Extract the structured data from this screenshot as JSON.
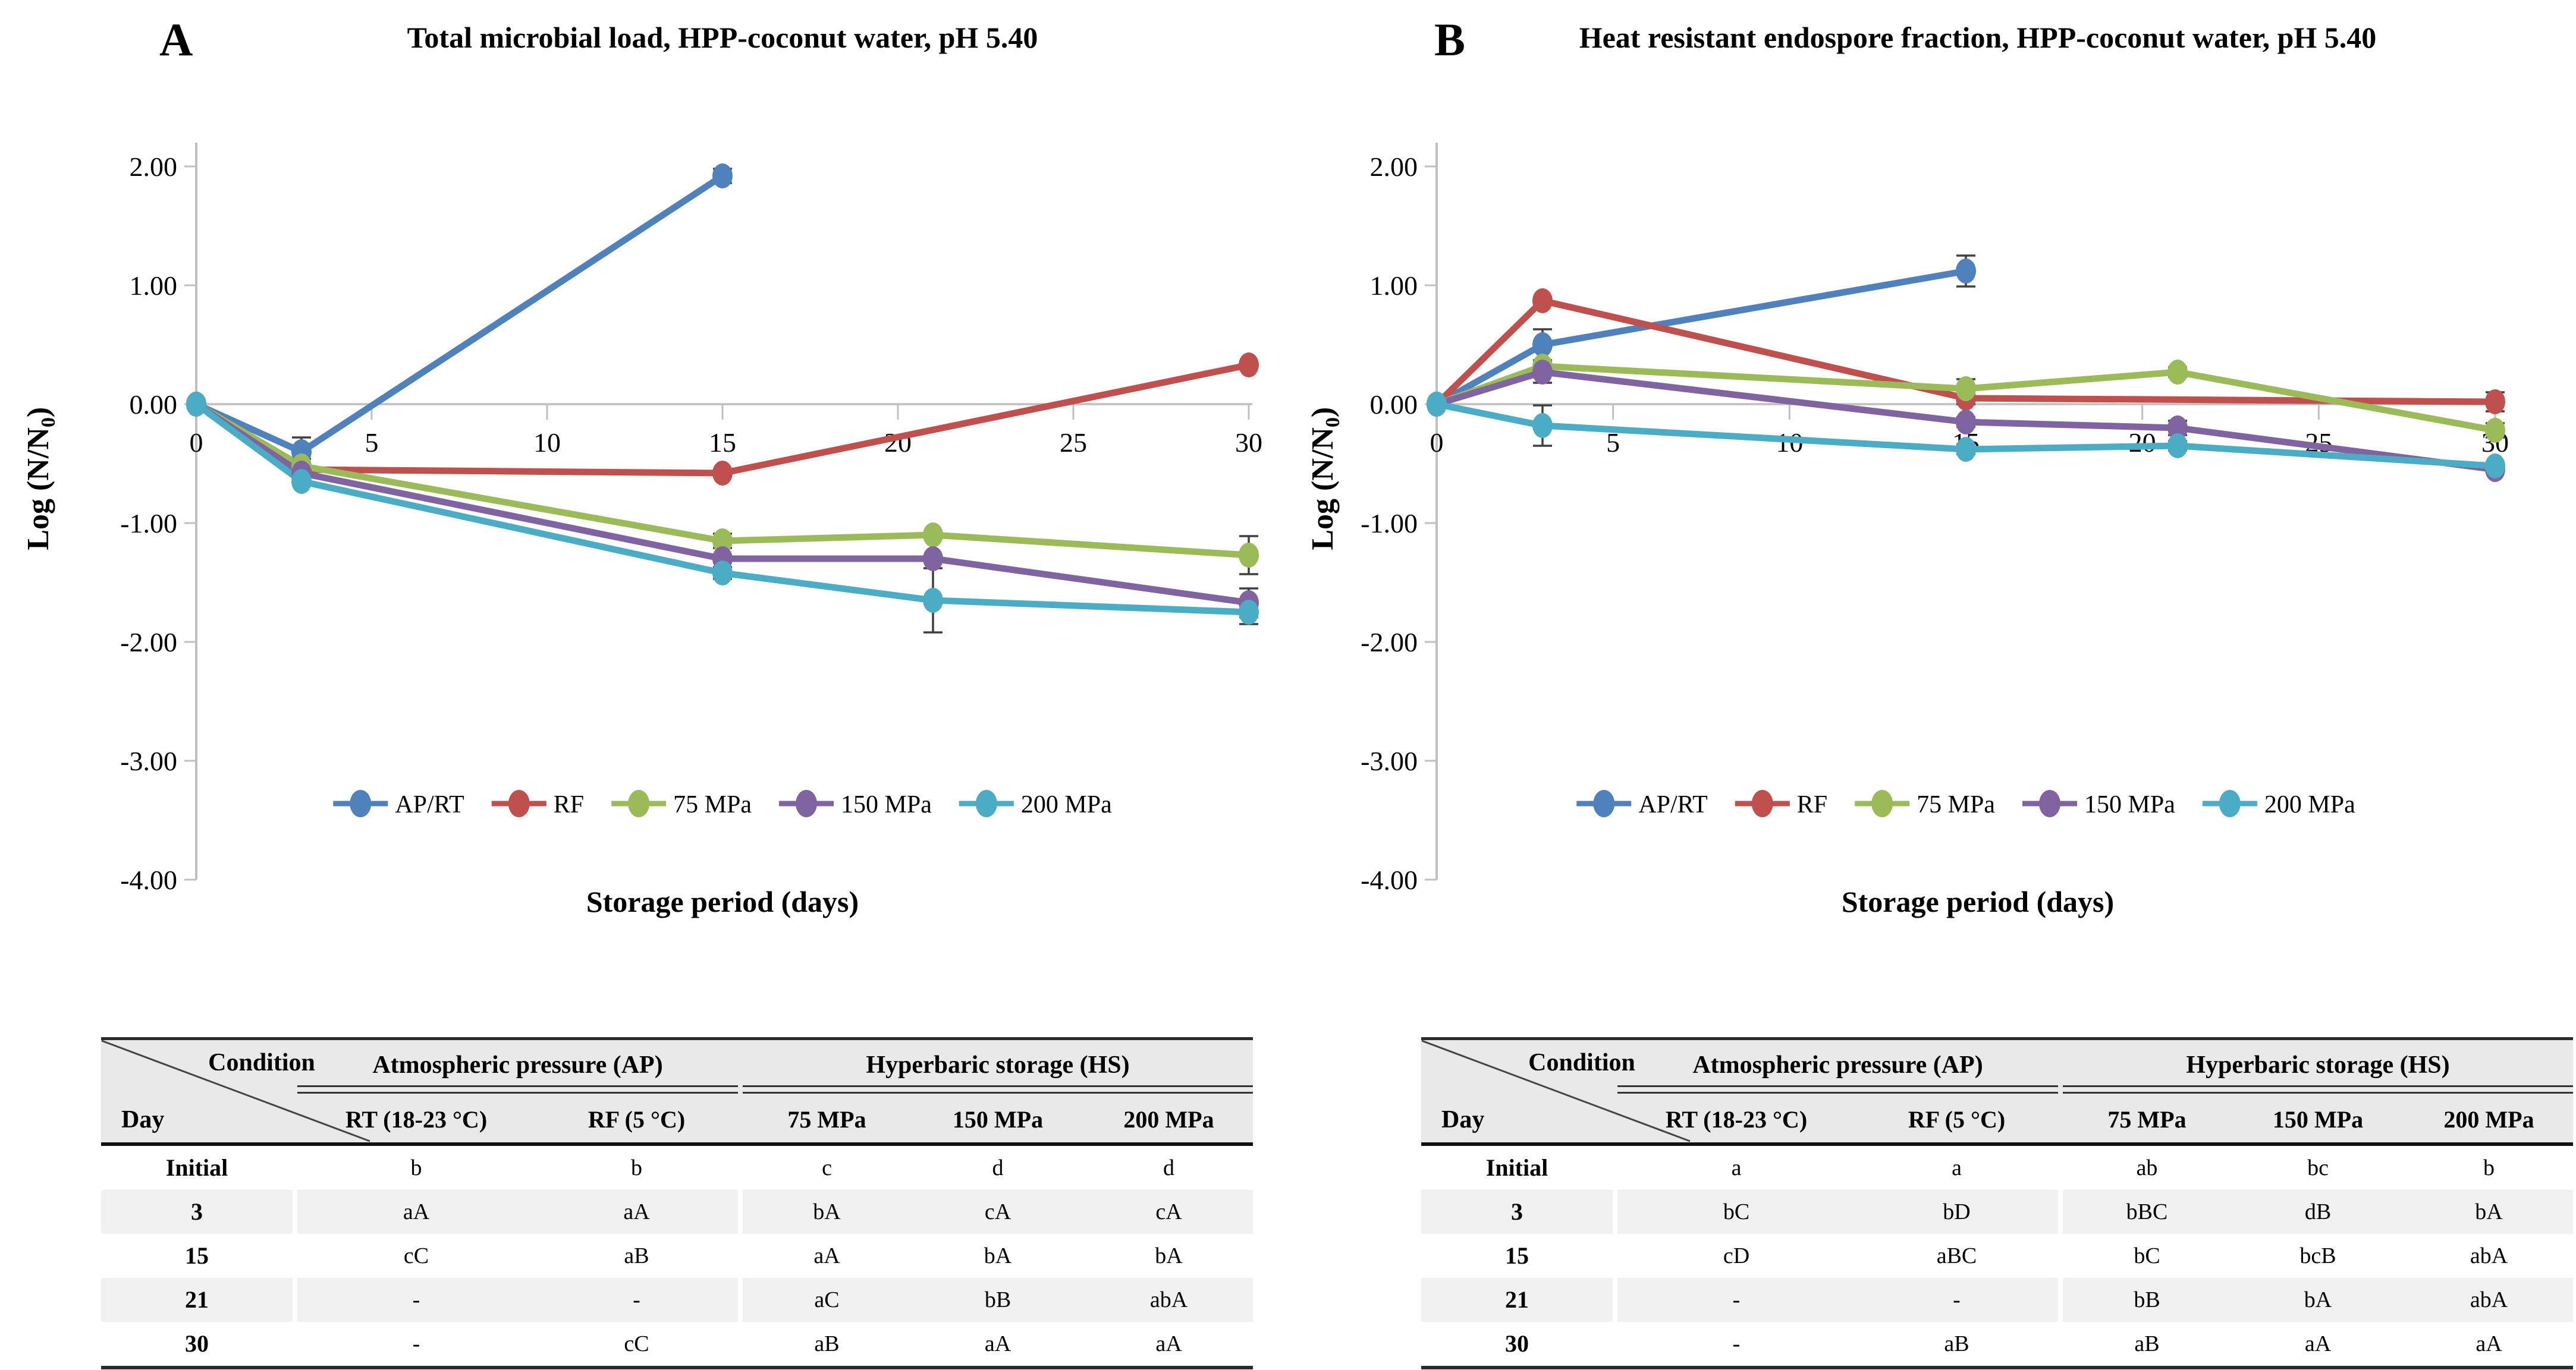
{
  "panels": [
    {
      "label": "A"
    },
    {
      "label": "B"
    }
  ],
  "axes": {
    "ylabel_pre": "Log (N/N",
    "ylabel_sub": "0",
    "ylabel_post": ")",
    "xlabel": "Storage period (days)",
    "yticks": [
      "2.00",
      "1.00",
      "0.00",
      "-1.00",
      "-2.00",
      "-3.00",
      "-4.00"
    ],
    "ytick_values": [
      2,
      1,
      0,
      -1,
      -2,
      -3,
      -4
    ],
    "xticks": [
      0,
      5,
      10,
      15,
      20,
      25,
      30
    ],
    "xlim": [
      0,
      30
    ],
    "ylim": [
      -4,
      2
    ]
  },
  "colors": {
    "axis": "#BFBFBF",
    "error_bar": "#3F3F3F",
    "blue": "#4F81BD",
    "red": "#C0504D",
    "green": "#9BBB59",
    "purple": "#8064A2",
    "cyan": "#4BACC6",
    "header_bg": "#E9E9E9",
    "row_shade": "#F1F1F1",
    "border_dark": "#2B2B2B"
  },
  "chart_data": [
    {
      "type": "line",
      "panel": "A",
      "title": "Total microbial load, HPP-coconut water, pH 5.40",
      "xlabel": "Storage period (days)",
      "ylabel": "Log (N/N0)",
      "xlim": [
        0,
        30
      ],
      "ylim": [
        -4,
        2
      ],
      "legend_position": "bottom",
      "grid": false,
      "series": [
        {
          "name": "AP/RT",
          "color": "#4F81BD",
          "x": [
            0,
            3,
            15
          ],
          "y": [
            0,
            -0.4,
            1.92
          ],
          "err": [
            0,
            0.12,
            0.06
          ]
        },
        {
          "name": "RF",
          "color": "#C0504D",
          "x": [
            0,
            3,
            15,
            30
          ],
          "y": [
            0,
            -0.55,
            -0.58,
            0.33
          ],
          "err": [
            0,
            0,
            0,
            0
          ]
        },
        {
          "name": "75 MPa",
          "color": "#9BBB59",
          "x": [
            0,
            3,
            15,
            21,
            30
          ],
          "y": [
            0,
            -0.52,
            -1.15,
            -1.1,
            -1.27
          ],
          "err": [
            0,
            0.06,
            0.06,
            0,
            0.16
          ]
        },
        {
          "name": "150 MPa",
          "color": "#8064A2",
          "x": [
            0,
            3,
            15,
            21,
            30
          ],
          "y": [
            0,
            -0.58,
            -1.3,
            -1.3,
            -1.67
          ],
          "err": [
            0,
            0.05,
            0,
            0,
            0.12
          ]
        },
        {
          "name": "200 MPa",
          "color": "#4BACC6",
          "x": [
            0,
            3,
            15,
            21,
            30
          ],
          "y": [
            0,
            -0.65,
            -1.42,
            -1.65,
            -1.75
          ],
          "err": [
            0,
            0,
            0.05,
            0.27,
            0.1
          ]
        }
      ]
    },
    {
      "type": "line",
      "panel": "B",
      "title": "Heat resistant endospore fraction, HPP-coconut water, pH 5.40",
      "xlabel": "Storage period (days)",
      "ylabel": "Log (N/N0)",
      "xlim": [
        0,
        30
      ],
      "ylim": [
        -4,
        2
      ],
      "legend_position": "bottom",
      "grid": false,
      "series": [
        {
          "name": "AP/RT",
          "color": "#4F81BD",
          "x": [
            0,
            3,
            15
          ],
          "y": [
            0,
            0.5,
            1.12
          ],
          "err": [
            0,
            0.13,
            0.13
          ]
        },
        {
          "name": "RF",
          "color": "#C0504D",
          "x": [
            0,
            3,
            15,
            30
          ],
          "y": [
            0,
            0.87,
            0.05,
            0.02
          ],
          "err": [
            0,
            0,
            0.05,
            0.08
          ]
        },
        {
          "name": "75 MPa",
          "color": "#9BBB59",
          "x": [
            0,
            3,
            15,
            21,
            30
          ],
          "y": [
            0,
            0.32,
            0.13,
            0.27,
            -0.22
          ],
          "err": [
            0,
            0.04,
            0.08,
            0.04,
            0.06
          ]
        },
        {
          "name": "150 MPa",
          "color": "#8064A2",
          "x": [
            0,
            3,
            15,
            21,
            30
          ],
          "y": [
            0,
            0.27,
            -0.15,
            -0.2,
            -0.55
          ],
          "err": [
            0,
            0.09,
            0.04,
            0.06,
            0
          ]
        },
        {
          "name": "200 MPa",
          "color": "#4BACC6",
          "x": [
            0,
            3,
            15,
            21,
            30
          ],
          "y": [
            0,
            -0.18,
            -0.38,
            -0.35,
            -0.52
          ],
          "err": [
            0,
            0.17,
            0.04,
            0.04,
            0
          ]
        }
      ]
    }
  ],
  "tables": [
    {
      "panel": "A",
      "corner_top": "Condition",
      "corner_bottom": "Day",
      "group_headers": [
        "Atmospheric pressure (AP)",
        "Hyperbaric storage (HS)"
      ],
      "col_headers": [
        "RT (18-23 °C)",
        "RF (5 °C)",
        "75 MPa",
        "150 MPa",
        "200 MPa"
      ],
      "rows": [
        {
          "day": "Initial",
          "values": [
            "b",
            "b",
            "c",
            "d",
            "d"
          ]
        },
        {
          "day": "3",
          "values": [
            "aA",
            "aA",
            "bA",
            "cA",
            "cA"
          ]
        },
        {
          "day": "15",
          "values": [
            "cC",
            "aB",
            "aA",
            "bA",
            "bA"
          ]
        },
        {
          "day": "21",
          "values": [
            "-",
            "-",
            "aC",
            "bB",
            "abA"
          ]
        },
        {
          "day": "30",
          "values": [
            "-",
            "cC",
            "aB",
            "aA",
            "aA"
          ]
        }
      ]
    },
    {
      "panel": "B",
      "corner_top": "Condition",
      "corner_bottom": "Day",
      "group_headers": [
        "Atmospheric pressure (AP)",
        "Hyperbaric storage (HS)"
      ],
      "col_headers": [
        "RT (18-23 °C)",
        "RF (5 °C)",
        "75 MPa",
        "150 MPa",
        "200 MPa"
      ],
      "rows": [
        {
          "day": "Initial",
          "values": [
            "a",
            "a",
            "ab",
            "bc",
            "b"
          ]
        },
        {
          "day": "3",
          "values": [
            "bC",
            "bD",
            "bBC",
            "dB",
            "bA"
          ]
        },
        {
          "day": "15",
          "values": [
            "cD",
            "aBC",
            "bC",
            "bcB",
            "abA"
          ]
        },
        {
          "day": "21",
          "values": [
            "-",
            "-",
            "bB",
            "bA",
            "abA"
          ]
        },
        {
          "day": "30",
          "values": [
            "-",
            "aB",
            "aB",
            "aA",
            "aA"
          ]
        }
      ]
    }
  ]
}
